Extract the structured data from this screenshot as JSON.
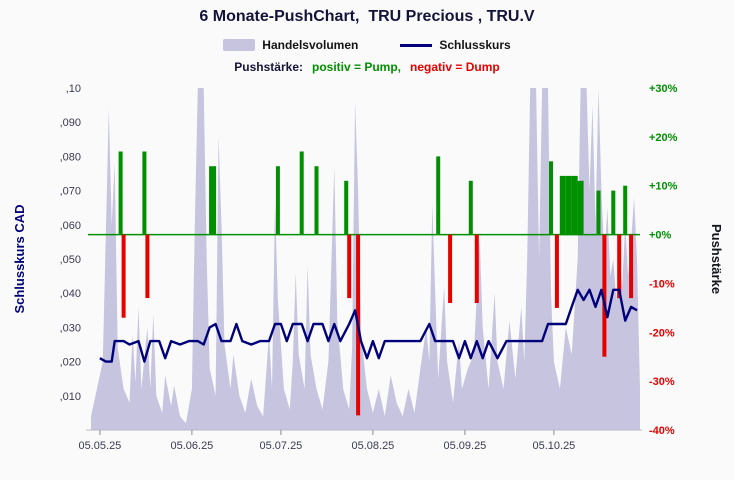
{
  "header": {
    "title": "6 Monate-PushChart,  TRU Precious , TRU.V"
  },
  "legend": {
    "volume_label": "Handelsvolumen",
    "close_label": "Schlusskurs",
    "push_prefix": "Pushstärke:",
    "push_positive": "positiv = Pump,",
    "push_negative": "negativ = Dump"
  },
  "colors": {
    "volume": "#c6c4df",
    "close_line": "#00007a",
    "pump": "#009000",
    "dump": "#e60000",
    "title_text": "#14143a",
    "axis_tick_text": "#3a3a52"
  },
  "chart_data": {
    "type": "composite",
    "title": "6 Monate-PushChart,  TRU Precious , TRU.V",
    "x_axis": {
      "range": [
        -4,
        182
      ],
      "ticks": [
        {
          "d": 0,
          "label": "05.05.25"
        },
        {
          "d": 31,
          "label": "05.06.25"
        },
        {
          "d": 61,
          "label": "05.07.25"
        },
        {
          "d": 92,
          "label": "05.08.25"
        },
        {
          "d": 123,
          "label": "05.09.25"
        },
        {
          "d": 153,
          "label": "05.10.25"
        }
      ]
    },
    "y_left": {
      "title": "Schlusskurs CAD",
      "range": [
        0,
        0.1
      ],
      "ticks": [
        {
          "v": 0.1,
          "label": ",10"
        },
        {
          "v": 0.09,
          "label": ",090"
        },
        {
          "v": 0.08,
          "label": ",080"
        },
        {
          "v": 0.07,
          "label": ",070"
        },
        {
          "v": 0.06,
          "label": ",060"
        },
        {
          "v": 0.05,
          "label": ",050"
        },
        {
          "v": 0.04,
          "label": ",040"
        },
        {
          "v": 0.03,
          "label": ",030"
        },
        {
          "v": 0.02,
          "label": ",020"
        },
        {
          "v": 0.01,
          "label": ",010"
        }
      ]
    },
    "y_right": {
      "title": "Pushstärke",
      "range": [
        -40,
        30
      ],
      "zero_line_color": "#009000",
      "ticks": [
        {
          "v": 30,
          "label": "+30%",
          "color": "#009000"
        },
        {
          "v": 20,
          "label": "+20%",
          "color": "#009000"
        },
        {
          "v": 10,
          "label": "+10%",
          "color": "#009000"
        },
        {
          "v": 0,
          "label": "+0%",
          "color": "#009000"
        },
        {
          "v": -10,
          "label": "-10%",
          "color": "#e60000"
        },
        {
          "v": -20,
          "label": "-20%",
          "color": "#e60000"
        },
        {
          "v": -30,
          "label": "-30%",
          "color": "#e60000"
        },
        {
          "v": -40,
          "label": "-40%",
          "color": "#e60000"
        }
      ]
    },
    "series": [
      {
        "id": "volume",
        "name": "Handelsvolumen",
        "type": "area",
        "axis": "left",
        "color": "#c6c4df",
        "points": [
          [
            -3,
            0.004
          ],
          [
            -1,
            0.012
          ],
          [
            1,
            0.02
          ],
          [
            3,
            0.094
          ],
          [
            4,
            0.06
          ],
          [
            5,
            0.078
          ],
          [
            6,
            0.024
          ],
          [
            8,
            0.012
          ],
          [
            10,
            0.008
          ],
          [
            11,
            0.028
          ],
          [
            12,
            0.014
          ],
          [
            13,
            0.036
          ],
          [
            14,
            0.012
          ],
          [
            16,
            0.03
          ],
          [
            17,
            0.012
          ],
          [
            18,
            0.034
          ],
          [
            19,
            0.01
          ],
          [
            21,
            0.005
          ],
          [
            22,
            0.016
          ],
          [
            24,
            0.007
          ],
          [
            25,
            0.013
          ],
          [
            27,
            0.004
          ],
          [
            29,
            0.002
          ],
          [
            31,
            0.012
          ],
          [
            32,
            0.06
          ],
          [
            33,
            0.1
          ],
          [
            35,
            0.1
          ],
          [
            36,
            0.05
          ],
          [
            37,
            0.018
          ],
          [
            39,
            0.01
          ],
          [
            40,
            0.086
          ],
          [
            41,
            0.06
          ],
          [
            42,
            0.025
          ],
          [
            44,
            0.012
          ],
          [
            45,
            0.022
          ],
          [
            47,
            0.01
          ],
          [
            49,
            0.005
          ],
          [
            51,
            0.015
          ],
          [
            53,
            0.007
          ],
          [
            55,
            0.004
          ],
          [
            57,
            0.028
          ],
          [
            58,
            0.012
          ],
          [
            59,
            0.066
          ],
          [
            60,
            0.038
          ],
          [
            62,
            0.012
          ],
          [
            64,
            0.006
          ],
          [
            65,
            0.02
          ],
          [
            66,
            0.046
          ],
          [
            67,
            0.022
          ],
          [
            69,
            0.012
          ],
          [
            70,
            0.048
          ],
          [
            71,
            0.022
          ],
          [
            73,
            0.012
          ],
          [
            75,
            0.006
          ],
          [
            77,
            0.02
          ],
          [
            79,
            0.077
          ],
          [
            80,
            0.032
          ],
          [
            82,
            0.012
          ],
          [
            84,
            0.006
          ],
          [
            85,
            0.024
          ],
          [
            86,
            0.096
          ],
          [
            87,
            0.07
          ],
          [
            88,
            0.028
          ],
          [
            90,
            0.012
          ],
          [
            92,
            0.005
          ],
          [
            94,
            0.012
          ],
          [
            96,
            0.004
          ],
          [
            98,
            0.016
          ],
          [
            100,
            0.008
          ],
          [
            102,
            0.004
          ],
          [
            104,
            0.012
          ],
          [
            106,
            0.005
          ],
          [
            108,
            0.018
          ],
          [
            110,
            0.03
          ],
          [
            111,
            0.02
          ],
          [
            112,
            0.066
          ],
          [
            113,
            0.04
          ],
          [
            114,
            0.015
          ],
          [
            116,
            0.042
          ],
          [
            117,
            0.02
          ],
          [
            119,
            0.008
          ],
          [
            121,
            0.026
          ],
          [
            122,
            0.012
          ],
          [
            124,
            0.018
          ],
          [
            126,
            0.022
          ],
          [
            128,
            0.056
          ],
          [
            129,
            0.03
          ],
          [
            131,
            0.012
          ],
          [
            133,
            0.04
          ],
          [
            134,
            0.02
          ],
          [
            136,
            0.012
          ],
          [
            138,
            0.032
          ],
          [
            140,
            0.015
          ],
          [
            142,
            0.036
          ],
          [
            143,
            0.02
          ],
          [
            144,
            0.05
          ],
          [
            145,
            0.1
          ],
          [
            147,
            0.1
          ],
          [
            148,
            0.05
          ],
          [
            149,
            0.1
          ],
          [
            151,
            0.1
          ],
          [
            152,
            0.04
          ],
          [
            153,
            0.02
          ],
          [
            155,
            0.012
          ],
          [
            157,
            0.03
          ],
          [
            159,
            0.022
          ],
          [
            161,
            0.05
          ],
          [
            162,
            0.1
          ],
          [
            164,
            0.1
          ],
          [
            165,
            0.07
          ],
          [
            166,
            0.095
          ],
          [
            167,
            0.06
          ],
          [
            168,
            0.1
          ],
          [
            169,
            0.07
          ],
          [
            170,
            0.05
          ],
          [
            171,
            0.065
          ],
          [
            172,
            0.045
          ],
          [
            173,
            0.05
          ],
          [
            174,
            0.038
          ],
          [
            175,
            0.05
          ],
          [
            176,
            0.042
          ],
          [
            177,
            0.06
          ],
          [
            178,
            0.045
          ],
          [
            179,
            0.055
          ],
          [
            180,
            0.068
          ],
          [
            181,
            0.05
          ],
          [
            182,
            0.012
          ]
        ]
      },
      {
        "id": "close",
        "name": "Schlusskurs",
        "type": "line",
        "axis": "left",
        "color": "#00007a",
        "points": [
          [
            0,
            0.021
          ],
          [
            2,
            0.02
          ],
          [
            4,
            0.02
          ],
          [
            5,
            0.026
          ],
          [
            8,
            0.026
          ],
          [
            10,
            0.025
          ],
          [
            13,
            0.026
          ],
          [
            15,
            0.02
          ],
          [
            17,
            0.026
          ],
          [
            20,
            0.026
          ],
          [
            22,
            0.021
          ],
          [
            24,
            0.026
          ],
          [
            27,
            0.025
          ],
          [
            30,
            0.026
          ],
          [
            33,
            0.026
          ],
          [
            35,
            0.025
          ],
          [
            37,
            0.03
          ],
          [
            39,
            0.031
          ],
          [
            41,
            0.026
          ],
          [
            44,
            0.026
          ],
          [
            46,
            0.031
          ],
          [
            48,
            0.026
          ],
          [
            51,
            0.025
          ],
          [
            54,
            0.026
          ],
          [
            57,
            0.026
          ],
          [
            59,
            0.031
          ],
          [
            61,
            0.031
          ],
          [
            63,
            0.026
          ],
          [
            65,
            0.031
          ],
          [
            68,
            0.031
          ],
          [
            70,
            0.026
          ],
          [
            72,
            0.031
          ],
          [
            75,
            0.031
          ],
          [
            77,
            0.026
          ],
          [
            79,
            0.031
          ],
          [
            81,
            0.026
          ],
          [
            84,
            0.031
          ],
          [
            86,
            0.035
          ],
          [
            88,
            0.026
          ],
          [
            90,
            0.021
          ],
          [
            92,
            0.026
          ],
          [
            94,
            0.021
          ],
          [
            96,
            0.026
          ],
          [
            99,
            0.026
          ],
          [
            102,
            0.026
          ],
          [
            105,
            0.026
          ],
          [
            108,
            0.026
          ],
          [
            111,
            0.031
          ],
          [
            113,
            0.026
          ],
          [
            116,
            0.026
          ],
          [
            119,
            0.026
          ],
          [
            121,
            0.021
          ],
          [
            123,
            0.026
          ],
          [
            125,
            0.021
          ],
          [
            127,
            0.026
          ],
          [
            129,
            0.021
          ],
          [
            131,
            0.026
          ],
          [
            134,
            0.021
          ],
          [
            137,
            0.026
          ],
          [
            140,
            0.026
          ],
          [
            143,
            0.026
          ],
          [
            146,
            0.026
          ],
          [
            149,
            0.026
          ],
          [
            151,
            0.031
          ],
          [
            154,
            0.031
          ],
          [
            157,
            0.031
          ],
          [
            159,
            0.036
          ],
          [
            161,
            0.041
          ],
          [
            163,
            0.038
          ],
          [
            165,
            0.041
          ],
          [
            167,
            0.036
          ],
          [
            169,
            0.041
          ],
          [
            171,
            0.033
          ],
          [
            173,
            0.041
          ],
          [
            175,
            0.041
          ],
          [
            177,
            0.032
          ],
          [
            179,
            0.036
          ],
          [
            181,
            0.035
          ]
        ]
      },
      {
        "id": "pump",
        "name": "Pushstärke positiv (Pump)",
        "type": "bar",
        "axis": "right",
        "color": "#009000",
        "points": [
          [
            7,
            17,
            4
          ],
          [
            15,
            17,
            4
          ],
          [
            38,
            14,
            7
          ],
          [
            60,
            14,
            4
          ],
          [
            68,
            17,
            4
          ],
          [
            73,
            14,
            4
          ],
          [
            83,
            11,
            4
          ],
          [
            114,
            16,
            4
          ],
          [
            125,
            11,
            4
          ],
          [
            152,
            15,
            4
          ],
          [
            156,
            12,
            6
          ],
          [
            158,
            12,
            6
          ],
          [
            160,
            12,
            6
          ],
          [
            162,
            11,
            6
          ],
          [
            168,
            9,
            4
          ],
          [
            173,
            9,
            4
          ],
          [
            177,
            10,
            4
          ]
        ]
      },
      {
        "id": "dump",
        "name": "Pushstärke negativ (Dump)",
        "type": "bar",
        "axis": "right",
        "color": "#e60000",
        "points": [
          [
            8,
            -17,
            4
          ],
          [
            16,
            -13,
            4
          ],
          [
            84,
            -13,
            4
          ],
          [
            87,
            -37,
            4
          ],
          [
            118,
            -14,
            4
          ],
          [
            127,
            -14,
            4
          ],
          [
            154,
            -15,
            4
          ],
          [
            170,
            -25,
            4
          ],
          [
            175,
            -13,
            4
          ],
          [
            179,
            -13,
            4
          ]
        ]
      }
    ]
  }
}
